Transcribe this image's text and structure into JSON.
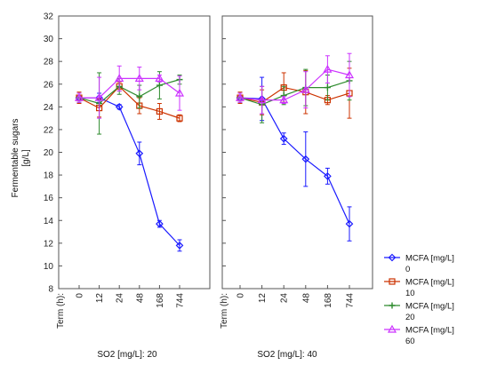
{
  "chart_data": {
    "type": "line",
    "ylabel_line1": "Fermentable sugars",
    "ylabel_line2": "[g/L]",
    "ylim": [
      8,
      32
    ],
    "yticks": [
      8,
      10,
      12,
      14,
      16,
      18,
      20,
      22,
      24,
      26,
      28,
      30,
      32
    ],
    "x_axis_prefix": "Term (h):",
    "categories": [
      "0",
      "12",
      "24",
      "48",
      "168",
      "744"
    ],
    "grid": false,
    "legend_position": "right",
    "legend_title": "MCFA [mg/L]",
    "panels": [
      {
        "caption": "SO2 [mg/L]: 20",
        "series": [
          {
            "name": "0",
            "color": "#1a1aff",
            "marker": "diamond",
            "values": [
              24.8,
              24.8,
              24.0,
              19.9,
              13.7,
              11.8
            ],
            "err": [
              0.4,
              0.4,
              0.2,
              1.0,
              0.3,
              0.5
            ]
          },
          {
            "name": "10",
            "color": "#cc3300",
            "marker": "square",
            "values": [
              24.8,
              23.9,
              25.8,
              24.1,
              23.6,
              23.0
            ],
            "err": [
              0.5,
              0.8,
              0.4,
              0.7,
              0.7,
              0.3
            ]
          },
          {
            "name": "20",
            "color": "#2e8b2e",
            "marker": "plus",
            "values": [
              24.8,
              24.3,
              25.8,
              24.9,
              25.9,
              26.4
            ],
            "err": [
              0.4,
              2.7,
              0.7,
              1.0,
              1.2,
              0.4
            ]
          },
          {
            "name": "60",
            "color": "#cc33ff",
            "marker": "triangle",
            "values": [
              24.8,
              24.8,
              26.5,
              26.5,
              26.5,
              25.2
            ],
            "err": [
              0.4,
              1.8,
              1.1,
              1.0,
              0.3,
              1.5
            ]
          }
        ]
      },
      {
        "caption": "SO2 [mg/L]: 40",
        "series": [
          {
            "name": "0",
            "color": "#1a1aff",
            "marker": "diamond",
            "values": [
              24.8,
              24.7,
              21.2,
              19.4,
              17.9,
              13.7
            ],
            "err": [
              0.4,
              1.9,
              0.5,
              2.4,
              0.7,
              1.5
            ]
          },
          {
            "name": "10",
            "color": "#cc3300",
            "marker": "square",
            "values": [
              24.8,
              24.4,
              25.7,
              25.3,
              24.6,
              25.2
            ],
            "err": [
              0.5,
              1.1,
              1.3,
              1.9,
              0.4,
              2.2
            ]
          },
          {
            "name": "20",
            "color": "#2e8b2e",
            "marker": "plus",
            "values": [
              24.8,
              24.2,
              25.0,
              25.7,
              25.7,
              26.3
            ],
            "err": [
              0.4,
              1.6,
              0.8,
              1.6,
              1.1,
              1.7
            ]
          },
          {
            "name": "60",
            "color": "#cc33ff",
            "marker": "triangle",
            "values": [
              24.8,
              24.6,
              24.6,
              25.5,
              27.3,
              26.8
            ],
            "err": [
              0.4,
              1.2,
              0.3,
              1.6,
              1.2,
              1.9
            ]
          }
        ]
      }
    ]
  }
}
